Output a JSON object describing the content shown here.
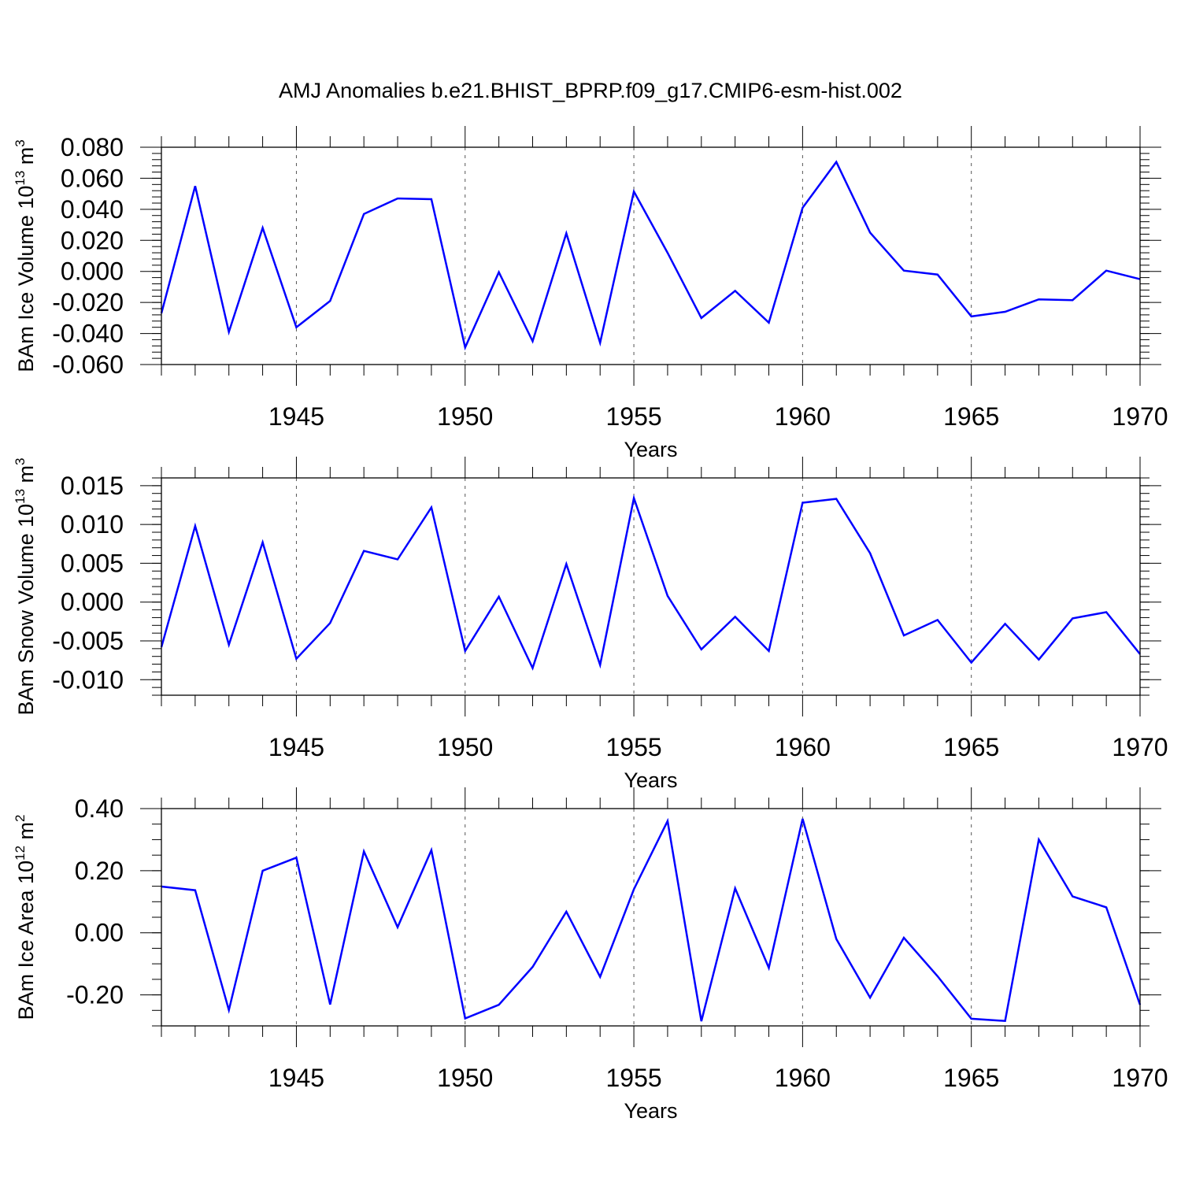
{
  "figure": {
    "title": "AMJ Anomalies b.e21.BHIST_BPRP.f09_g17.CMIP6-esm-hist.002"
  },
  "chart_data": [
    {
      "type": "line",
      "title": "",
      "xlabel": "Years",
      "ylabel": "BAm Ice Volume 10",
      "ylabel_exp": "13",
      "ylabel_unit": " m",
      "ylabel_unit_exp": "3",
      "xlim": [
        1941,
        1970
      ],
      "ylim": [
        -0.06,
        0.08
      ],
      "x_ticks": [
        1945,
        1950,
        1955,
        1960,
        1965,
        1970
      ],
      "x_tick_labels": [
        "1945",
        "1950",
        "1955",
        "1960",
        "1965",
        "1970"
      ],
      "y_ticks": [
        -0.06,
        -0.04,
        -0.02,
        0,
        0.02,
        0.04,
        0.06,
        0.08
      ],
      "y_tick_labels": [
        "-0.060",
        "-0.040",
        "-0.020",
        "0.000",
        "0.020",
        "0.040",
        "0.060",
        "0.080"
      ],
      "y_minor_step": 0.004,
      "grid": "vertical dashed lines at 1945, 1950, 1955, 1960, 1965",
      "series": [
        {
          "color": "#0000ff",
          "x": [
            1941,
            1942,
            1943,
            1944,
            1945,
            1946,
            1947,
            1948,
            1949,
            1950,
            1951,
            1952,
            1953,
            1954,
            1955,
            1956,
            1957,
            1958,
            1959,
            1960,
            1961,
            1962,
            1963,
            1964,
            1965,
            1966,
            1967,
            1968,
            1969,
            1970
          ],
          "values": [
            -0.027,
            0.055,
            -0.039,
            0.028,
            -0.036,
            -0.019,
            0.037,
            0.047,
            0.0465,
            -0.049,
            -0.0005,
            -0.045,
            0.0245,
            -0.046,
            0.0515,
            0.012,
            -0.03,
            -0.0125,
            -0.033,
            0.041,
            0.0705,
            0.025,
            0.0005,
            -0.002,
            -0.029,
            -0.026,
            -0.018,
            -0.0185,
            0.0005,
            -0.005
          ]
        }
      ]
    },
    {
      "type": "line",
      "title": "",
      "xlabel": "Years",
      "ylabel": "BAm Snow Volume 10",
      "ylabel_exp": "13",
      "ylabel_unit": " m",
      "ylabel_unit_exp": "3",
      "xlim": [
        1941,
        1970
      ],
      "ylim": [
        -0.012,
        0.016
      ],
      "x_ticks": [
        1945,
        1950,
        1955,
        1960,
        1965,
        1970
      ],
      "x_tick_labels": [
        "1945",
        "1950",
        "1955",
        "1960",
        "1965",
        "1970"
      ],
      "y_ticks": [
        -0.01,
        -0.005,
        0,
        0.005,
        0.01,
        0.015
      ],
      "y_tick_labels": [
        "-0.010",
        "-0.005",
        "0.000",
        "0.005",
        "0.010",
        "0.015"
      ],
      "y_minor_step": 0.001,
      "grid": "vertical dashed lines at 1945, 1950, 1955, 1960, 1965",
      "series": [
        {
          "color": "#0000ff",
          "x": [
            1941,
            1942,
            1943,
            1944,
            1945,
            1946,
            1947,
            1948,
            1949,
            1950,
            1951,
            1952,
            1953,
            1954,
            1955,
            1956,
            1957,
            1958,
            1959,
            1960,
            1961,
            1962,
            1963,
            1964,
            1965,
            1966,
            1967,
            1968,
            1969,
            1970
          ],
          "values": [
            -0.0058,
            0.0098,
            -0.0055,
            0.0077,
            -0.0073,
            -0.0027,
            0.0066,
            0.0055,
            0.0122,
            -0.0063,
            0.0007,
            -0.0085,
            0.0049,
            -0.0081,
            0.0134,
            0.0008,
            -0.0061,
            -0.0019,
            -0.0063,
            0.0128,
            0.0133,
            0.0063,
            -0.0043,
            -0.0023,
            -0.0078,
            -0.0028,
            -0.0074,
            -0.0021,
            -0.0013,
            -0.0067
          ]
        }
      ]
    },
    {
      "type": "line",
      "title": "",
      "xlabel": "Years",
      "ylabel": "BAm Ice Area 10",
      "ylabel_exp": "12",
      "ylabel_unit": " m",
      "ylabel_unit_exp": "2",
      "xlim": [
        1941,
        1970
      ],
      "ylim": [
        -0.3,
        0.4
      ],
      "x_ticks": [
        1945,
        1950,
        1955,
        1960,
        1965,
        1970
      ],
      "x_tick_labels": [
        "1945",
        "1950",
        "1955",
        "1960",
        "1965",
        "1970"
      ],
      "y_ticks": [
        -0.2,
        0,
        0.2,
        0.4
      ],
      "y_tick_labels": [
        "-0.20",
        "0.00",
        "0.20",
        "0.40"
      ],
      "y_minor_step": 0.05,
      "grid": "vertical dashed lines at 1945, 1950, 1955, 1960, 1965",
      "series": [
        {
          "color": "#0000ff",
          "x": [
            1941,
            1942,
            1943,
            1944,
            1945,
            1946,
            1947,
            1948,
            1949,
            1950,
            1951,
            1952,
            1953,
            1954,
            1955,
            1956,
            1957,
            1958,
            1959,
            1960,
            1961,
            1962,
            1963,
            1964,
            1965,
            1966,
            1967,
            1968,
            1969,
            1970
          ],
          "values": [
            0.149,
            0.137,
            -0.249,
            0.2,
            0.242,
            -0.231,
            0.262,
            0.018,
            0.266,
            -0.276,
            -0.232,
            -0.11,
            0.068,
            -0.142,
            0.14,
            0.36,
            -0.285,
            0.143,
            -0.113,
            0.367,
            -0.02,
            -0.209,
            -0.016,
            -0.14,
            -0.277,
            -0.284,
            0.3,
            0.117,
            0.082,
            -0.232
          ]
        }
      ]
    }
  ]
}
